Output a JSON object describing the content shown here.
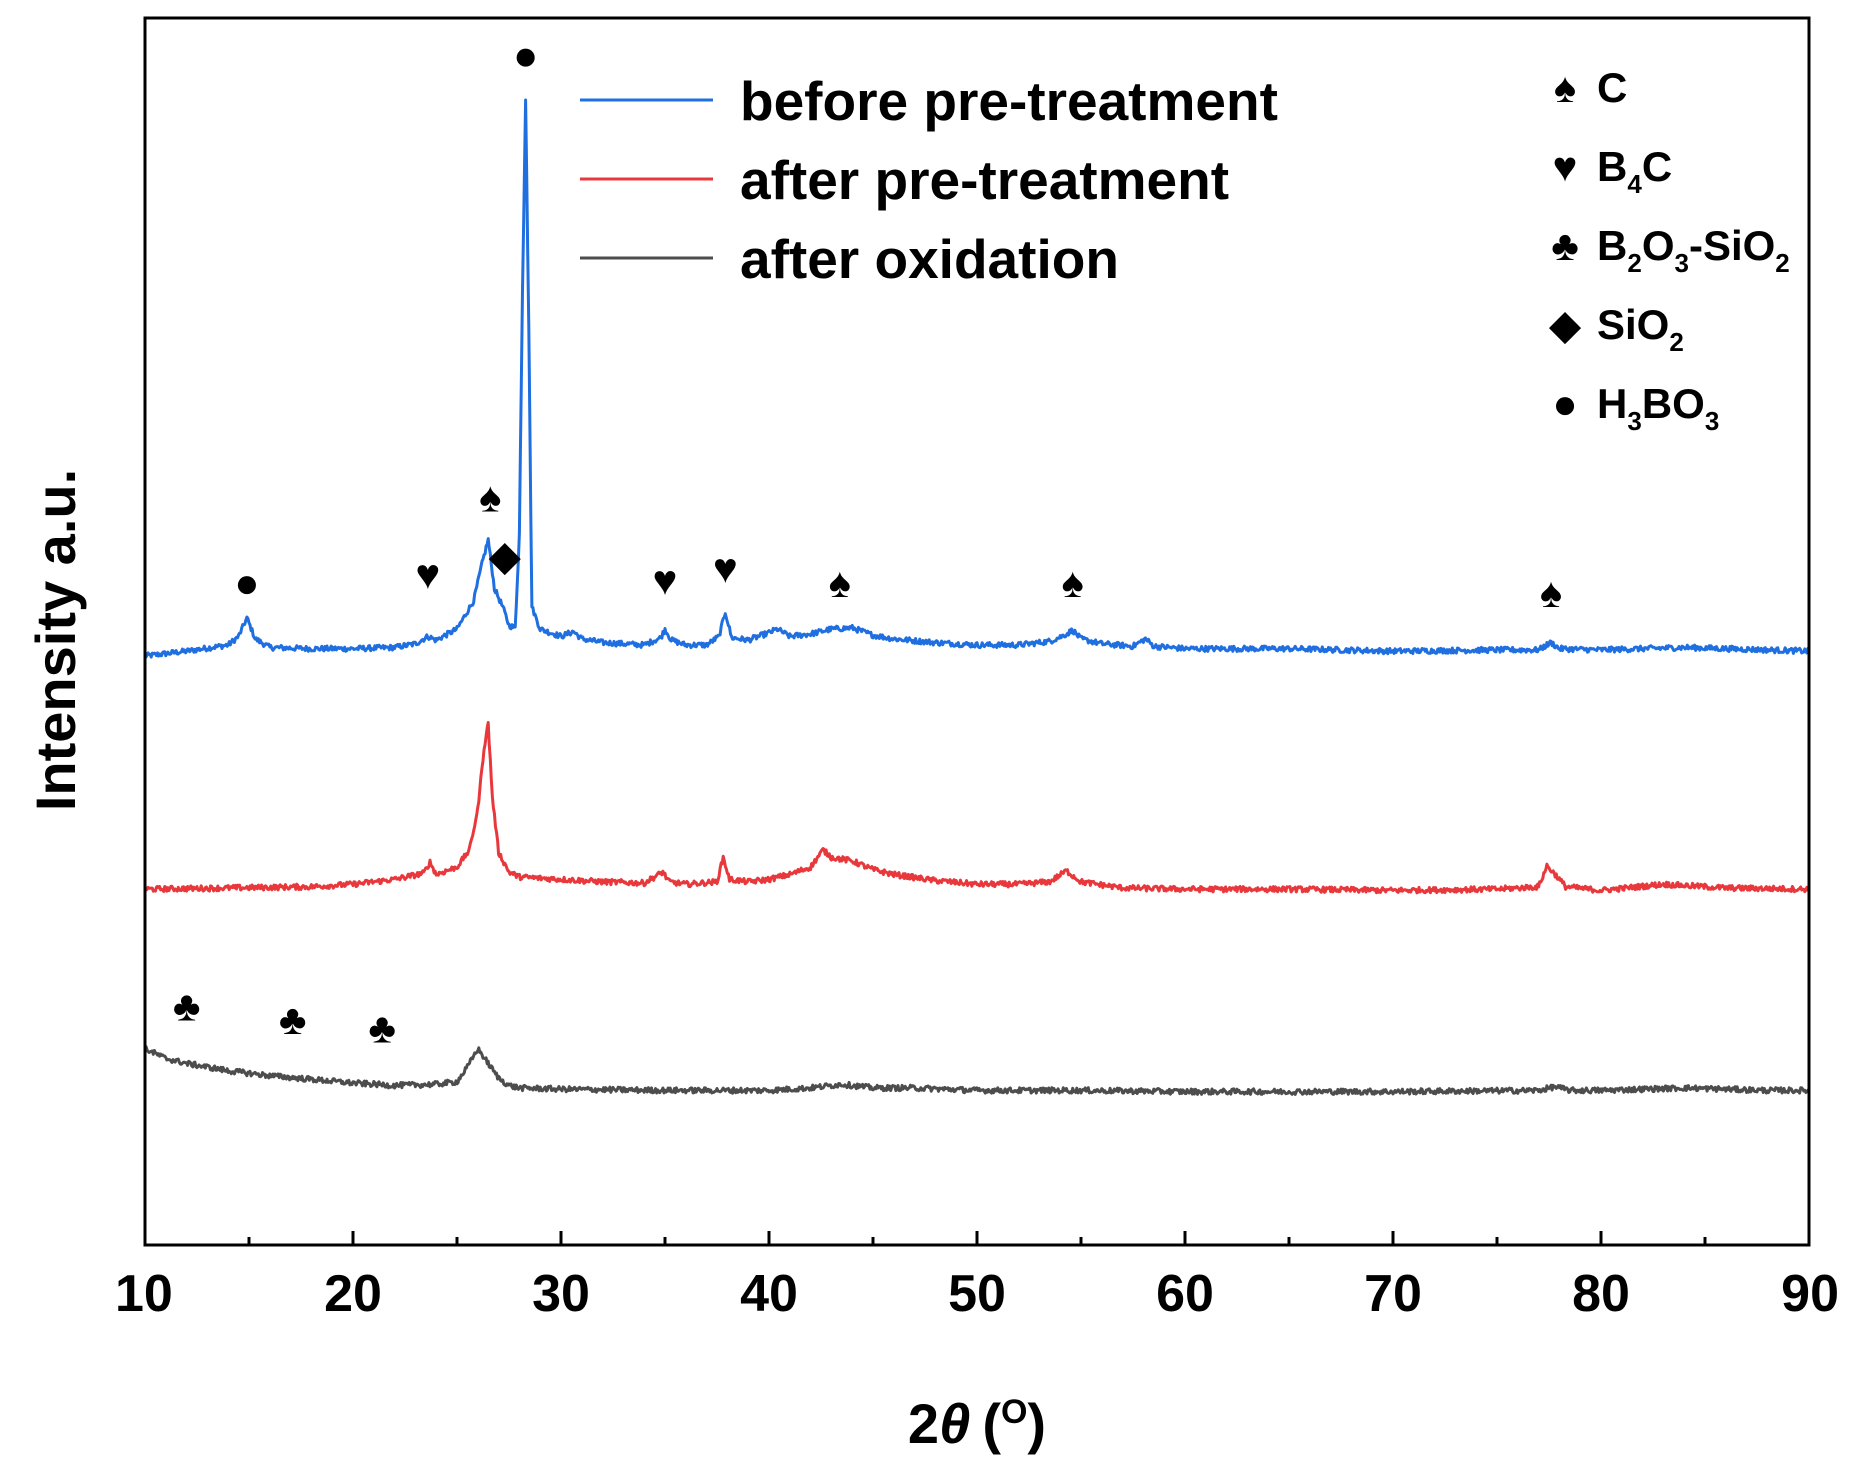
{
  "chart_data": {
    "type": "line",
    "title": "",
    "xlabel_prefix": "2",
    "xlabel_theta": "θ",
    "xlabel_unit": "(",
    "xlabel_degree": "O",
    "xlabel_close": ")",
    "ylabel": "Intensity a.u.",
    "xlim": [
      10,
      90
    ],
    "ylim": [
      0,
      100
    ],
    "x_ticks": [
      10,
      20,
      30,
      40,
      50,
      60,
      70,
      80,
      90
    ],
    "x_minor_step": 5,
    "y_tick_labels": false,
    "grid": false,
    "legend_position": "top-center",
    "series": [
      {
        "name": "before pre-treatment",
        "color": "#1f6fe0",
        "points": [
          [
            10,
            48
          ],
          [
            12,
            48.4
          ],
          [
            14,
            48.9
          ],
          [
            14.5,
            49.6
          ],
          [
            14.9,
            51.1
          ],
          [
            15.3,
            49.4
          ],
          [
            16,
            48.7
          ],
          [
            18,
            48.6
          ],
          [
            20,
            48.6
          ],
          [
            22,
            48.7
          ],
          [
            23,
            49.0
          ],
          [
            23.6,
            49.6
          ],
          [
            24,
            49.3
          ],
          [
            25,
            50.2
          ],
          [
            25.8,
            52.5
          ],
          [
            26.2,
            55.5
          ],
          [
            26.5,
            57.5
          ],
          [
            26.8,
            53.5
          ],
          [
            27.2,
            52.0
          ],
          [
            27.5,
            50.5
          ],
          [
            27.8,
            50.3
          ],
          [
            28.0,
            58
          ],
          [
            28.15,
            78
          ],
          [
            28.3,
            93.5
          ],
          [
            28.45,
            75
          ],
          [
            28.6,
            52
          ],
          [
            29,
            50.2
          ],
          [
            30,
            49.6
          ],
          [
            30.6,
            50.0
          ],
          [
            31,
            49.4
          ],
          [
            32,
            49.1
          ],
          [
            34,
            48.9
          ],
          [
            34.8,
            49.5
          ],
          [
            35,
            50.2
          ],
          [
            35.3,
            49.3
          ],
          [
            36,
            48.9
          ],
          [
            37,
            48.9
          ],
          [
            37.6,
            49.6
          ],
          [
            37.9,
            51.6
          ],
          [
            38.2,
            49.5
          ],
          [
            39,
            49.3
          ],
          [
            40,
            49.9
          ],
          [
            40.4,
            50.2
          ],
          [
            41,
            49.6
          ],
          [
            42,
            49.8
          ],
          [
            43,
            50.2
          ],
          [
            44,
            50.3
          ],
          [
            45,
            49.7
          ],
          [
            46,
            49.4
          ],
          [
            48,
            49.1
          ],
          [
            50,
            48.9
          ],
          [
            52,
            48.9
          ],
          [
            53.5,
            49.2
          ],
          [
            54.2,
            49.7
          ],
          [
            54.6,
            50.1
          ],
          [
            55,
            49.4
          ],
          [
            56,
            49.0
          ],
          [
            57.5,
            48.8
          ],
          [
            58.1,
            49.4
          ],
          [
            58.5,
            48.8
          ],
          [
            60,
            48.6
          ],
          [
            65,
            48.6
          ],
          [
            70,
            48.4
          ],
          [
            75,
            48.5
          ],
          [
            77,
            48.5
          ],
          [
            77.6,
            49.1
          ],
          [
            78,
            48.6
          ],
          [
            80,
            48.5
          ],
          [
            84,
            48.7
          ],
          [
            88,
            48.5
          ],
          [
            90,
            48.4
          ]
        ]
      },
      {
        "name": "after pre-treatment",
        "color": "#e8383c",
        "points": [
          [
            10,
            29
          ],
          [
            14,
            29.1
          ],
          [
            18,
            29.2
          ],
          [
            20,
            29.4
          ],
          [
            22,
            29.8
          ],
          [
            23.4,
            30.3
          ],
          [
            23.7,
            31.2
          ],
          [
            24,
            30.2
          ],
          [
            25,
            30.8
          ],
          [
            25.6,
            32.2
          ],
          [
            26,
            35.5
          ],
          [
            26.3,
            40.5
          ],
          [
            26.5,
            42.5
          ],
          [
            26.7,
            36.5
          ],
          [
            27,
            32
          ],
          [
            27.5,
            30.4
          ],
          [
            28,
            30.0
          ],
          [
            30,
            29.8
          ],
          [
            32,
            29.6
          ],
          [
            34,
            29.5
          ],
          [
            34.9,
            30.4
          ],
          [
            35.2,
            29.6
          ],
          [
            36,
            29.4
          ],
          [
            37.5,
            29.6
          ],
          [
            37.8,
            31.6
          ],
          [
            38.1,
            29.8
          ],
          [
            39,
            29.6
          ],
          [
            40,
            29.8
          ],
          [
            41,
            30.2
          ],
          [
            42,
            30.8
          ],
          [
            42.6,
            32.2
          ],
          [
            43,
            31.6
          ],
          [
            44,
            31.3
          ],
          [
            45,
            30.6
          ],
          [
            46,
            30.2
          ],
          [
            48,
            29.7
          ],
          [
            50,
            29.4
          ],
          [
            52,
            29.4
          ],
          [
            53.5,
            29.6
          ],
          [
            54.3,
            30.5
          ],
          [
            55,
            29.6
          ],
          [
            57,
            29.1
          ],
          [
            60,
            29.0
          ],
          [
            65,
            29.0
          ],
          [
            70,
            28.9
          ],
          [
            75,
            29.0
          ],
          [
            77,
            29.2
          ],
          [
            77.4,
            30.9
          ],
          [
            77.8,
            30.2
          ],
          [
            78.3,
            29.2
          ],
          [
            80,
            28.9
          ],
          [
            83,
            29.4
          ],
          [
            86,
            29.1
          ],
          [
            90,
            29.0
          ]
        ]
      },
      {
        "name": "after oxidation",
        "color": "#4d4d4d",
        "points": [
          [
            10,
            16.0
          ],
          [
            11,
            15.2
          ],
          [
            12,
            14.8
          ],
          [
            14,
            14.2
          ],
          [
            16,
            13.8
          ],
          [
            18,
            13.5
          ],
          [
            20,
            13.2
          ],
          [
            22,
            13.0
          ],
          [
            24,
            13.1
          ],
          [
            25,
            13.3
          ],
          [
            25.5,
            14.5
          ],
          [
            26,
            16.0
          ],
          [
            26.5,
            14.8
          ],
          [
            27,
            13.6
          ],
          [
            27.5,
            13.0
          ],
          [
            28,
            12.8
          ],
          [
            30,
            12.7
          ],
          [
            35,
            12.6
          ],
          [
            40,
            12.6
          ],
          [
            42,
            12.8
          ],
          [
            43.5,
            13.1
          ],
          [
            45,
            12.8
          ],
          [
            47,
            12.8
          ],
          [
            50,
            12.6
          ],
          [
            55,
            12.6
          ],
          [
            60,
            12.5
          ],
          [
            70,
            12.5
          ],
          [
            77,
            12.6
          ],
          [
            77.8,
            12.9
          ],
          [
            78.5,
            12.6
          ],
          [
            80,
            12.6
          ],
          [
            84,
            12.8
          ],
          [
            88,
            12.6
          ],
          [
            90,
            12.6
          ]
        ]
      }
    ],
    "phase_legend": [
      {
        "symbol": "♠",
        "label": "C",
        "sub": []
      },
      {
        "symbol": "♥",
        "label": "B",
        "sub": [
          "4",
          "C"
        ]
      },
      {
        "symbol": "♣",
        "label": "B",
        "sub": [
          "2",
          "O",
          "3",
          "-SiO",
          "2"
        ]
      },
      {
        "symbol": "◆",
        "label": "SiO",
        "sub": [
          "2"
        ]
      },
      {
        "symbol": "●",
        "label": "H",
        "sub": [
          "3",
          "BO",
          "3"
        ]
      }
    ],
    "peak_markers": [
      {
        "symbol": "●",
        "x": 28.3,
        "y": 95.8
      },
      {
        "symbol": "●",
        "x": 14.9,
        "y": 52.8
      },
      {
        "symbol": "♥",
        "x": 23.6,
        "y": 53.5
      },
      {
        "symbol": "♠",
        "x": 26.6,
        "y": 59.8
      },
      {
        "symbol": "◆",
        "x": 27.3,
        "y": 55.0
      },
      {
        "symbol": "♥",
        "x": 35.0,
        "y": 53.0
      },
      {
        "symbol": "♥",
        "x": 37.9,
        "y": 54.0
      },
      {
        "symbol": "♠",
        "x": 43.4,
        "y": 52.8
      },
      {
        "symbol": "♠",
        "x": 54.6,
        "y": 52.8
      },
      {
        "symbol": "♠",
        "x": 77.6,
        "y": 52.0
      },
      {
        "symbol": "♣",
        "x": 12.0,
        "y": 18.3
      },
      {
        "symbol": "♣",
        "x": 17.1,
        "y": 17.2
      },
      {
        "symbol": "♣",
        "x": 21.4,
        "y": 16.5
      }
    ]
  }
}
